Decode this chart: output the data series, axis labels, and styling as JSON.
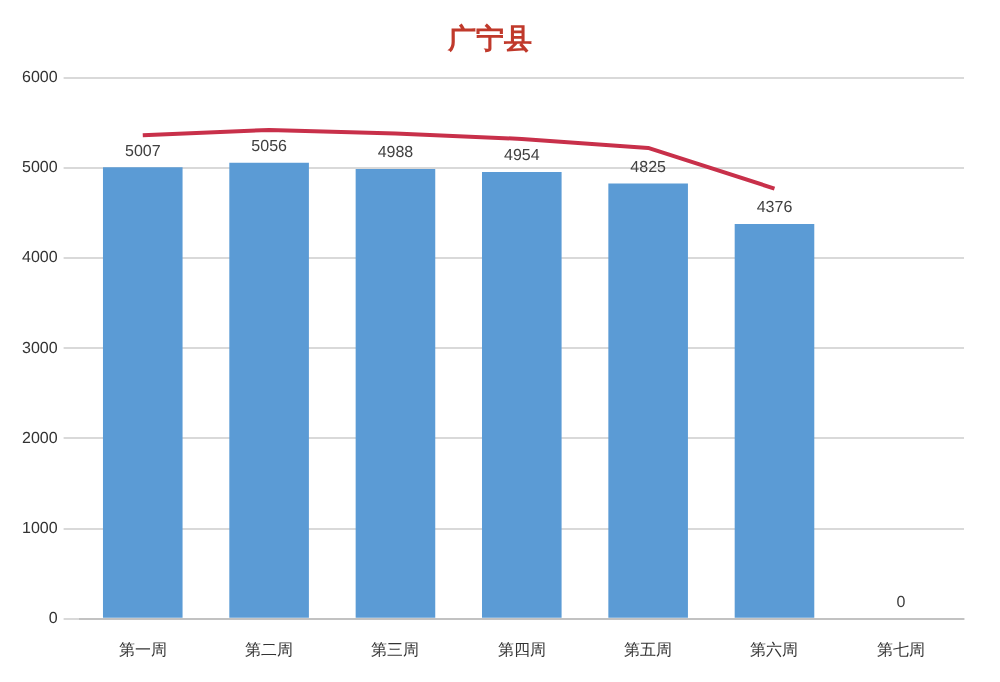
{
  "chart_data": {
    "type": "bar",
    "title": "广宁县",
    "categories": [
      "第一周",
      "第二周",
      "第三周",
      "第四周",
      "第五周",
      "第六周",
      "第七周"
    ],
    "series": [
      {
        "color": "#5b9bd5",
        "values": [
          5007,
          5056,
          4988,
          4954,
          4825,
          4376,
          0
        ],
        "value_labels": [
          "5007",
          "5056",
          "4988",
          "4954",
          "4825",
          "4376",
          "0"
        ]
      },
      {
        "type": "line",
        "color": "#c8304a",
        "values": [
          5360,
          5420,
          5380,
          5320,
          5220,
          4770,
          null
        ]
      }
    ],
    "ylim": [
      0,
      6000
    ],
    "yticks": [
      0,
      1000,
      2000,
      3000,
      4000,
      5000,
      6000
    ],
    "grid": "y",
    "legend": false,
    "marker": "none"
  }
}
